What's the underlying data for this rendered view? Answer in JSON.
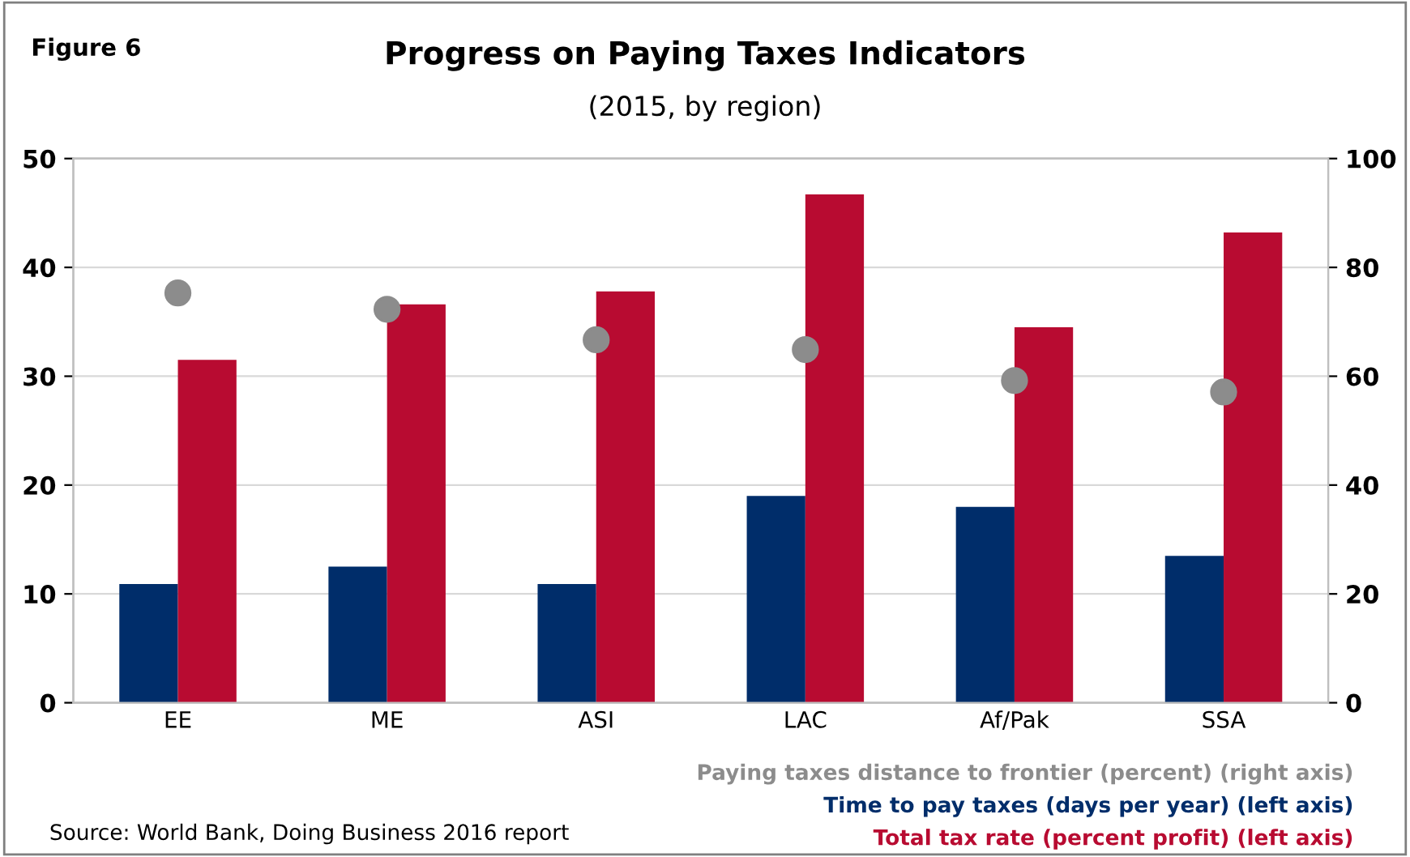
{
  "chart_data": {
    "type": "bar",
    "title": "Progress on Paying Taxes Indicators",
    "subtitle": "(2015, by region)",
    "categories": [
      "EE",
      "ME",
      "ASI",
      "LAC",
      "Af/Pak",
      "SSA"
    ],
    "series": [
      {
        "name": "Time to pay taxes (days per year) (left axis)",
        "color": "#002d6a",
        "values": [
          10.9,
          12.5,
          10.9,
          19.0,
          18.0,
          13.5
        ]
      },
      {
        "name": "Total tax rate (percent profit) (left axis)",
        "color": "#b80b31",
        "values": [
          31.5,
          36.6,
          37.8,
          46.7,
          34.5,
          43.2
        ]
      },
      {
        "name": "Paying taxes distance to frontier (percent) (right axis)",
        "color": "#8c8c8c",
        "type": "scatter",
        "axis": "y2",
        "marker": "circle",
        "values": [
          75.3,
          72.3,
          66.7,
          64.9,
          59.2,
          57.1
        ]
      }
    ],
    "ylim": [
      0,
      50
    ],
    "yticks": [
      0,
      10,
      20,
      30,
      40,
      50
    ],
    "y2lim": [
      0,
      100
    ],
    "y2ticks": [
      0,
      20,
      40,
      60,
      80,
      100
    ],
    "grid": "y",
    "legend": "bottom right",
    "annotations": [
      "Figure 6",
      "Source: World Bank, Doing Business 2016 report"
    ]
  }
}
